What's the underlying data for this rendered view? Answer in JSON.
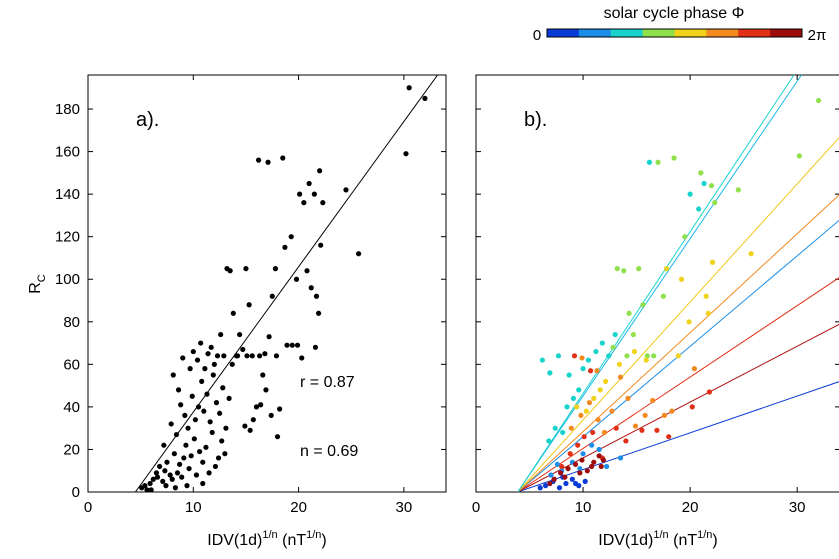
{
  "colorbar": {
    "title": "solar cycle phase Φ",
    "min_label": "0",
    "max_label": "2π",
    "colors": [
      "#0b3bd6",
      "#1a8ee8",
      "#17d3cc",
      "#8fe04a",
      "#f0d21a",
      "#f28a1f",
      "#e23018",
      "#9e0b0b"
    ]
  },
  "chart_data": [
    {
      "type": "scatter",
      "panel_label": "a).",
      "xlabel": "IDV(1d)",
      "xlabel_sup": "1/n",
      "xlabel_unit": "(nT",
      "xlabel_unit_sup": "1/n",
      "xlabel_close": ")",
      "ylabel": "R",
      "ylabel_sub": "C",
      "xlim": [
        0,
        34
      ],
      "ylim": [
        0,
        196
      ],
      "xticks": [
        0,
        10,
        20,
        30
      ],
      "yticks": [
        0,
        20,
        40,
        60,
        80,
        100,
        120,
        140,
        160,
        180
      ],
      "annotations": [
        "r = 0.87",
        "n = 0.69"
      ],
      "fit_line": {
        "x0": 4.5,
        "y0": 0,
        "x1": 33.2,
        "y1": 196,
        "color": "#000000"
      },
      "point_color": "#000000",
      "points": [
        [
          5.1,
          2
        ],
        [
          5.4,
          3
        ],
        [
          5.6,
          1
        ],
        [
          5.9,
          4
        ],
        [
          6.2,
          6
        ],
        [
          6.5,
          9
        ],
        [
          6.8,
          12
        ],
        [
          6.6,
          7
        ],
        [
          7.1,
          5
        ],
        [
          7.3,
          10
        ],
        [
          7.5,
          14
        ],
        [
          7.8,
          8
        ],
        [
          8.0,
          6
        ],
        [
          8.2,
          18
        ],
        [
          8.5,
          9
        ],
        [
          8.7,
          13
        ],
        [
          8.9,
          7
        ],
        [
          9.1,
          16
        ],
        [
          9.3,
          22
        ],
        [
          9.6,
          11
        ],
        [
          9.8,
          17
        ],
        [
          10.1,
          25
        ],
        [
          10.3,
          8
        ],
        [
          10.6,
          19
        ],
        [
          10.9,
          14
        ],
        [
          11.2,
          21
        ],
        [
          11.5,
          9
        ],
        [
          11.8,
          28
        ],
        [
          12.1,
          12
        ],
        [
          12.4,
          16
        ],
        [
          7.2,
          22
        ],
        [
          7.9,
          32
        ],
        [
          8.4,
          27
        ],
        [
          8.8,
          41
        ],
        [
          9.2,
          36
        ],
        [
          9.5,
          30
        ],
        [
          9.9,
          45
        ],
        [
          10.2,
          34
        ],
        [
          10.5,
          40
        ],
        [
          10.8,
          52
        ],
        [
          11.0,
          38
        ],
        [
          11.3,
          46
        ],
        [
          11.6,
          33
        ],
        [
          11.9,
          55
        ],
        [
          12.2,
          42
        ],
        [
          12.5,
          37
        ],
        [
          12.8,
          49
        ],
        [
          13.1,
          30
        ],
        [
          13.4,
          44
        ],
        [
          13.7,
          60
        ],
        [
          8.1,
          55
        ],
        [
          8.6,
          48
        ],
        [
          9.0,
          63
        ],
        [
          9.7,
          58
        ],
        [
          10.0,
          66
        ],
        [
          10.4,
          62
        ],
        [
          10.7,
          70
        ],
        [
          11.1,
          58
        ],
        [
          11.4,
          65
        ],
        [
          11.7,
          68
        ],
        [
          12.0,
          60
        ],
        [
          12.3,
          64
        ],
        [
          12.6,
          74
        ],
        [
          12.9,
          64
        ],
        [
          13.2,
          105
        ],
        [
          13.5,
          104
        ],
        [
          13.8,
          84
        ],
        [
          14.1,
          64
        ],
        [
          14.4,
          74
        ],
        [
          14.7,
          67
        ],
        [
          15.0,
          105
        ],
        [
          15.3,
          88
        ],
        [
          15.6,
          64
        ],
        [
          16.0,
          40
        ],
        [
          16.3,
          64
        ],
        [
          16.6,
          55
        ],
        [
          16.9,
          48
        ],
        [
          17.2,
          73
        ],
        [
          17.5,
          92
        ],
        [
          17.8,
          105
        ],
        [
          16.2,
          156
        ],
        [
          17.1,
          155
        ],
        [
          18.5,
          157
        ],
        [
          19.8,
          100
        ],
        [
          20.1,
          140
        ],
        [
          20.5,
          136
        ],
        [
          21.0,
          145
        ],
        [
          21.5,
          140
        ],
        [
          22.0,
          151
        ],
        [
          22.3,
          136
        ],
        [
          18.7,
          115
        ],
        [
          19.3,
          120
        ],
        [
          19.9,
          69
        ],
        [
          20.8,
          104
        ],
        [
          21.2,
          96
        ],
        [
          21.7,
          92
        ],
        [
          22.1,
          116
        ],
        [
          24.5,
          142
        ],
        [
          25.7,
          112
        ],
        [
          30.2,
          159
        ],
        [
          30.5,
          190
        ],
        [
          32.0,
          185
        ],
        [
          14.2,
          64
        ],
        [
          15.1,
          64
        ],
        [
          16.8,
          65
        ],
        [
          17.9,
          64
        ],
        [
          18.9,
          69
        ],
        [
          19.4,
          69
        ],
        [
          21.9,
          84
        ],
        [
          21.6,
          68
        ],
        [
          14.9,
          31
        ],
        [
          15.7,
          34
        ],
        [
          16.4,
          41
        ],
        [
          17.4,
          36
        ],
        [
          18.2,
          39
        ],
        [
          20.3,
          63
        ],
        [
          18.0,
          26
        ],
        [
          15.4,
          29
        ],
        [
          13.0,
          18
        ],
        [
          12.7,
          24
        ],
        [
          10.9,
          4
        ],
        [
          9.4,
          3
        ],
        [
          8.3,
          2
        ],
        [
          7.4,
          3
        ],
        [
          6.0,
          1
        ]
      ]
    },
    {
      "type": "scatter",
      "panel_label": "b).",
      "xlabel": "IDV(1d)",
      "xlabel_sup": "1/n",
      "xlabel_unit": "(nT",
      "xlabel_unit_sup": "1/n",
      "xlabel_close": ")",
      "xlim": [
        0,
        34
      ],
      "ylim": [
        0,
        196
      ],
      "xticks": [
        0,
        10,
        20,
        30
      ],
      "fit_lines": [
        {
          "x0": 3.9,
          "y0": 0,
          "x1": 34,
          "y1": 52,
          "color": "#0b3bd6"
        },
        {
          "x0": 3.9,
          "y0": 0,
          "x1": 34,
          "y1": 79,
          "color": "#b01010"
        },
        {
          "x0": 3.9,
          "y0": 0,
          "x1": 34,
          "y1": 101,
          "color": "#e23018"
        },
        {
          "x0": 3.9,
          "y0": 0,
          "x1": 34,
          "y1": 128,
          "color": "#1a8ee8"
        },
        {
          "x0": 3.9,
          "y0": 0,
          "x1": 34,
          "y1": 140,
          "color": "#f28a1f"
        },
        {
          "x0": 3.9,
          "y0": 0,
          "x1": 34,
          "y1": 167,
          "color": "#f0c81a"
        },
        {
          "x0": 3.9,
          "y0": 0,
          "x1": 30.4,
          "y1": 196,
          "color": "#1ab8e8"
        },
        {
          "x0": 3.9,
          "y0": 0,
          "x1": 29.7,
          "y1": 196,
          "color": "#17d3cc"
        }
      ],
      "points": [
        [
          6.5,
          3,
          "#0b3bd6"
        ],
        [
          7.2,
          5,
          "#0b3bd6"
        ],
        [
          7.8,
          2,
          "#0b3bd6"
        ],
        [
          8.4,
          4,
          "#0b3bd6"
        ],
        [
          9.0,
          6,
          "#0b3bd6"
        ],
        [
          9.6,
          3,
          "#0b3bd6"
        ],
        [
          10.2,
          5,
          "#0b3bd6"
        ],
        [
          6.0,
          2,
          "#0b3bd6"
        ],
        [
          8.1,
          7,
          "#0b3bd6"
        ],
        [
          9.3,
          4,
          "#0b3bd6"
        ],
        [
          7.0,
          8,
          "#1a8ee8"
        ],
        [
          8.0,
          10,
          "#1a8ee8"
        ],
        [
          9.0,
          14,
          "#1a8ee8"
        ],
        [
          10.0,
          18,
          "#1a8ee8"
        ],
        [
          10.8,
          22,
          "#1a8ee8"
        ],
        [
          12.2,
          12,
          "#1a8ee8"
        ],
        [
          13.5,
          16,
          "#1a8ee8"
        ],
        [
          7.6,
          13,
          "#1a8ee8"
        ],
        [
          9.7,
          11,
          "#1a8ee8"
        ],
        [
          11.5,
          20,
          "#1a8ee8"
        ],
        [
          6.8,
          24,
          "#17d3cc"
        ],
        [
          7.4,
          30,
          "#17d3cc"
        ],
        [
          8.1,
          28,
          "#17d3cc"
        ],
        [
          8.5,
          40,
          "#17d3cc"
        ],
        [
          9.1,
          44,
          "#17d3cc"
        ],
        [
          9.6,
          48,
          "#17d3cc"
        ],
        [
          10.0,
          58,
          "#17d3cc"
        ],
        [
          10.5,
          62,
          "#17d3cc"
        ],
        [
          11.2,
          66,
          "#17d3cc"
        ],
        [
          11.8,
          70,
          "#17d3cc"
        ],
        [
          12.4,
          64,
          "#17d3cc"
        ],
        [
          6.2,
          62,
          "#17d3cc"
        ],
        [
          6.9,
          56,
          "#17d3cc"
        ],
        [
          7.7,
          64,
          "#17d3cc"
        ],
        [
          8.7,
          55,
          "#17d3cc"
        ],
        [
          13.0,
          74,
          "#17d3cc"
        ],
        [
          16.2,
          155,
          "#17d3cc"
        ],
        [
          20.0,
          140,
          "#17d3cc"
        ],
        [
          20.8,
          133,
          "#17d3cc"
        ],
        [
          21.3,
          145,
          "#17d3cc"
        ],
        [
          13.2,
          105,
          "#8fe04a"
        ],
        [
          13.8,
          104,
          "#8fe04a"
        ],
        [
          14.3,
          84,
          "#8fe04a"
        ],
        [
          14.7,
          74,
          "#8fe04a"
        ],
        [
          15.2,
          105,
          "#8fe04a"
        ],
        [
          15.6,
          88,
          "#8fe04a"
        ],
        [
          16.0,
          64,
          "#8fe04a"
        ],
        [
          17.0,
          155,
          "#8fe04a"
        ],
        [
          18.5,
          157,
          "#8fe04a"
        ],
        [
          21.0,
          150,
          "#8fe04a"
        ],
        [
          22.0,
          144,
          "#8fe04a"
        ],
        [
          24.5,
          142,
          "#8fe04a"
        ],
        [
          30.2,
          158,
          "#8fe04a"
        ],
        [
          32.0,
          184,
          "#8fe04a"
        ],
        [
          17.5,
          92,
          "#8fe04a"
        ],
        [
          14.1,
          64,
          "#8fe04a"
        ],
        [
          16.6,
          64,
          "#8fe04a"
        ],
        [
          19.5,
          120,
          "#8fe04a"
        ],
        [
          22.3,
          136,
          "#8fe04a"
        ],
        [
          12.8,
          68,
          "#8fe04a"
        ],
        [
          10.3,
          38,
          "#f0d21a"
        ],
        [
          11.0,
          44,
          "#f0d21a"
        ],
        [
          11.6,
          48,
          "#f0d21a"
        ],
        [
          12.1,
          52,
          "#f0d21a"
        ],
        [
          13.4,
          60,
          "#f0d21a"
        ],
        [
          14.8,
          66,
          "#f0d21a"
        ],
        [
          17.8,
          105,
          "#f0d21a"
        ],
        [
          19.2,
          100,
          "#f0d21a"
        ],
        [
          22.1,
          108,
          "#f0d21a"
        ],
        [
          21.5,
          92,
          "#f0d21a"
        ],
        [
          21.7,
          84,
          "#f0d21a"
        ],
        [
          25.7,
          112,
          "#f0d21a"
        ],
        [
          19.9,
          80,
          "#f0d21a"
        ],
        [
          9.4,
          40,
          "#f0d21a"
        ],
        [
          15.9,
          62,
          "#f0d21a"
        ],
        [
          18.9,
          64,
          "#f0d21a"
        ],
        [
          8.9,
          30,
          "#f28a1f"
        ],
        [
          9.8,
          36,
          "#f28a1f"
        ],
        [
          10.6,
          42,
          "#f28a1f"
        ],
        [
          11.4,
          34,
          "#f28a1f"
        ],
        [
          12.0,
          28,
          "#f28a1f"
        ],
        [
          12.7,
          38,
          "#f28a1f"
        ],
        [
          13.5,
          54,
          "#f28a1f"
        ],
        [
          14.2,
          44,
          "#f28a1f"
        ],
        [
          14.9,
          31,
          "#f28a1f"
        ],
        [
          15.8,
          36,
          "#f28a1f"
        ],
        [
          16.5,
          43,
          "#f28a1f"
        ],
        [
          17.6,
          36,
          "#f28a1f"
        ],
        [
          18.3,
          38,
          "#f28a1f"
        ],
        [
          20.4,
          58,
          "#f28a1f"
        ],
        [
          9.9,
          63,
          "#f28a1f"
        ],
        [
          11.3,
          57,
          "#f28a1f"
        ],
        [
          8.0,
          12,
          "#e23018"
        ],
        [
          8.8,
          18,
          "#e23018"
        ],
        [
          9.5,
          22,
          "#e23018"
        ],
        [
          10.1,
          26,
          "#e23018"
        ],
        [
          10.9,
          28,
          "#e23018"
        ],
        [
          11.8,
          16,
          "#e23018"
        ],
        [
          13.1,
          30,
          "#e23018"
        ],
        [
          14.0,
          24,
          "#e23018"
        ],
        [
          15.5,
          29,
          "#e23018"
        ],
        [
          16.9,
          29,
          "#e23018"
        ],
        [
          18.0,
          26,
          "#e23018"
        ],
        [
          20.2,
          40,
          "#e23018"
        ],
        [
          21.8,
          47,
          "#e23018"
        ],
        [
          9.2,
          64,
          "#e23018"
        ],
        [
          10.7,
          57,
          "#e23018"
        ],
        [
          7.3,
          6,
          "#9e0b0b"
        ],
        [
          7.9,
          9,
          "#9e0b0b"
        ],
        [
          8.6,
          11,
          "#9e0b0b"
        ],
        [
          9.3,
          13,
          "#9e0b0b"
        ],
        [
          9.9,
          15,
          "#9e0b0b"
        ],
        [
          10.4,
          10,
          "#9e0b0b"
        ],
        [
          11.0,
          14,
          "#9e0b0b"
        ],
        [
          11.5,
          17,
          "#9e0b0b"
        ],
        [
          11.9,
          15,
          "#9e0b0b"
        ],
        [
          6.9,
          4,
          "#9e0b0b"
        ],
        [
          8.3,
          7,
          "#9e0b0b"
        ],
        [
          9.7,
          9,
          "#9e0b0b"
        ],
        [
          10.8,
          12,
          "#9e0b0b"
        ],
        [
          11.7,
          12,
          "#9e0b0b"
        ]
      ]
    }
  ]
}
